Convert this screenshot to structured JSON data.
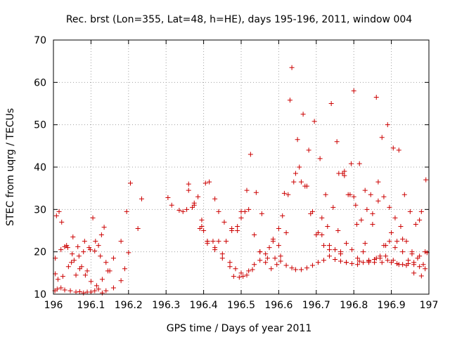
{
  "chart_data": {
    "type": "scatter",
    "title": "Rec. brst (Lon=355, Lat=48, h=HE), days 195-196, 2011, window 004",
    "xlabel": "GPS time / Days of year 2011",
    "ylabel": "STEC from uqrg / TECUs",
    "xlim": [
      196,
      197
    ],
    "ylim": [
      10,
      70
    ],
    "xticks": [
      196,
      196.1,
      196.2,
      196.3,
      196.4,
      196.5,
      196.6,
      196.7,
      196.8,
      196.9,
      197
    ],
    "xtick_labels": [
      "196",
      "196.1",
      "196.2",
      "196.3",
      "196.4",
      "196.5",
      "196.6",
      "196.7",
      "196.8",
      "196.9",
      "197"
    ],
    "yticks": [
      10,
      20,
      30,
      40,
      50,
      60,
      70
    ],
    "ytick_labels": [
      "10",
      "20",
      "30",
      "40",
      "50",
      "60",
      "70"
    ],
    "grid": true,
    "marker": "plus",
    "color": "#cc0000",
    "series": [
      {
        "x": [
          196.004,
          196.01,
          196.02,
          196.03,
          196.045,
          196.06,
          196.07,
          196.08,
          196.09,
          196.1,
          196.11,
          196.12,
          196.13,
          196.14,
          196.16,
          196.18,
          196.19,
          196.2,
          196.005,
          196.012,
          196.025,
          196.04,
          196.055,
          196.07,
          196.085,
          196.1,
          196.115,
          196.13,
          196.145,
          196.16,
          196.18,
          196.195,
          196.005,
          196.02,
          196.035,
          196.05,
          196.065,
          196.08,
          196.095,
          196.11,
          196.125,
          196.14,
          196.008,
          196.022,
          196.038,
          196.052,
          196.068,
          196.083,
          196.098,
          196.112,
          196.128,
          196.015,
          196.03,
          196.048,
          196.06,
          196.075,
          196.09,
          196.105,
          196.12,
          196.135,
          196.15,
          196.205,
          196.225,
          196.235,
          196.305,
          196.315,
          196.335,
          196.345,
          196.355,
          196.36,
          196.37,
          196.375,
          196.385,
          196.395,
          196.4,
          196.405,
          196.415,
          196.43,
          196.44,
          196.455,
          196.475,
          196.49,
          196.5,
          196.515,
          196.525,
          196.54,
          196.555,
          196.36,
          196.375,
          196.395,
          196.41,
          196.425,
          196.44,
          196.46,
          196.475,
          196.49,
          196.5,
          196.51,
          196.52,
          196.535,
          196.55,
          196.565,
          196.58,
          196.595,
          196.605,
          196.62,
          196.635,
          196.65,
          196.665,
          196.68,
          196.695,
          196.71,
          196.725,
          196.74,
          196.755,
          196.77,
          196.785,
          196.8,
          196.815,
          196.83,
          196.845,
          196.86,
          196.875,
          196.89,
          196.905,
          196.92,
          196.935,
          196.95,
          196.965,
          196.98,
          196.992,
          196.39,
          196.41,
          196.43,
          196.45,
          196.47,
          196.48,
          196.495,
          196.505,
          196.515,
          196.53,
          196.55,
          196.565,
          196.575,
          196.585,
          196.6,
          196.61,
          196.625,
          196.64,
          196.655,
          196.67,
          196.685,
          196.7,
          196.715,
          196.73,
          196.745,
          196.76,
          196.775,
          196.79,
          196.805,
          196.82,
          196.835,
          196.85,
          196.865,
          196.88,
          196.895,
          196.91,
          196.925,
          196.94,
          196.955,
          196.97,
          196.985,
          196.41,
          196.43,
          196.45,
          196.47,
          196.485,
          196.5,
          196.52,
          196.535,
          196.55,
          196.57,
          196.585,
          196.6,
          196.615,
          196.63,
          196.645,
          196.66,
          196.675,
          196.69,
          196.705,
          196.72,
          196.735,
          196.75,
          196.765,
          196.78,
          196.795,
          196.81,
          196.825,
          196.84,
          196.855,
          196.87,
          196.885,
          196.9,
          196.915,
          196.93,
          196.945,
          196.96,
          196.975,
          196.99,
          196.59,
          196.605,
          196.62,
          196.635,
          196.645,
          196.66,
          196.675,
          196.69,
          196.705,
          196.72,
          196.735,
          196.75,
          196.765,
          196.78,
          196.795,
          196.81,
          196.825,
          196.84,
          196.855,
          196.87,
          196.885,
          196.9,
          196.915,
          196.93,
          196.945,
          196.96,
          196.975,
          196.99,
          196.715,
          196.735,
          196.758,
          196.775,
          196.793,
          196.808,
          196.83,
          196.85,
          196.865,
          196.88,
          196.895,
          196.91,
          196.93,
          196.955,
          196.975,
          196.995,
          196.765,
          196.78,
          196.8,
          196.815,
          196.84,
          196.86,
          196.875,
          196.89,
          196.905,
          196.92,
          196.94,
          196.96,
          196.98
        ],
        "y": [
          10.8,
          11.2,
          11.5,
          11.0,
          10.8,
          10.5,
          10.6,
          10.3,
          10.5,
          10.5,
          10.8,
          11.2,
          10.3,
          10.8,
          11.5,
          13.2,
          16.0,
          19.8,
          14.8,
          13.5,
          14.2,
          16.5,
          18.0,
          16.0,
          14.5,
          13.0,
          12.0,
          13.5,
          15.5,
          18.5,
          22.5,
          29.5,
          18.5,
          20.5,
          21.5,
          19.5,
          21.2,
          20.0,
          21.0,
          20.2,
          19.0,
          17.5,
          28.5,
          27.0,
          21.0,
          23.5,
          19.0,
          22.5,
          20.5,
          22.5,
          24.0,
          29.5,
          21.2,
          17.5,
          14.5,
          16.5,
          15.5,
          28.0,
          21.5,
          25.8,
          15.5,
          36.2,
          25.5,
          32.5,
          32.8,
          31.0,
          29.8,
          29.5,
          30.0,
          34.5,
          30.5,
          31.0,
          33.0,
          27.5,
          25.0,
          36.2,
          36.5,
          32.5,
          29.5,
          27.0,
          25.5,
          26.0,
          29.5,
          34.5,
          43.0,
          34.0,
          29.0,
          36.0,
          31.5,
          26.0,
          22.5,
          22.5,
          22.5,
          22.5,
          25.0,
          25.0,
          28.0,
          29.5,
          30.0,
          24.0,
          20.0,
          17.5,
          16.0,
          17.0,
          19.0,
          24.5,
          63.5,
          46.5,
          52.5,
          44.0,
          50.8,
          42.0,
          33.5,
          55.0,
          46.0,
          38.5,
          33.5,
          58.0,
          40.8,
          34.5,
          33.5,
          56.5,
          47.0,
          50.0,
          44.5,
          44.0,
          33.5,
          29.5,
          26.5,
          29.5,
          37.0,
          25.5,
          22.5,
          21.0,
          18.5,
          16.5,
          14.2,
          14.0,
          14.2,
          14.5,
          15.8,
          18.0,
          19.5,
          21.0,
          23.0,
          25.5,
          28.5,
          33.5,
          36.5,
          40.0,
          35.5,
          29.0,
          24.0,
          28.0,
          26.0,
          30.5,
          38.5,
          38.0,
          33.5,
          31.0,
          27.5,
          30.0,
          29.0,
          36.5,
          33.0,
          30.5,
          28.0,
          26.0,
          22.5,
          20.0,
          18.5,
          17.0,
          22.0,
          20.5,
          19.5,
          17.5,
          16.0,
          15.0,
          15.5,
          17.0,
          20.0,
          18.5,
          22.5,
          21.5,
          33.8,
          55.8,
          38.5,
          36.5,
          35.5,
          29.5,
          24.5,
          21.5,
          21.5,
          20.5,
          20.0,
          22.0,
          20.5,
          18.5,
          20.0,
          17.5,
          17.5,
          19.0,
          21.5,
          24.5,
          22.5,
          20.0,
          18.0,
          17.5,
          19.0,
          20.0,
          18.5,
          17.8,
          16.8,
          16.2,
          15.8,
          15.8,
          16.2,
          16.8,
          17.5,
          18.0,
          19.0,
          18.2,
          17.8,
          17.5,
          17.2,
          17.0,
          17.5,
          18.0,
          18.2,
          18.5,
          19.0,
          17.5,
          17.2,
          17.0,
          17.2,
          17.0,
          16.5,
          16.0,
          24.0,
          20.5,
          25.0,
          39.0,
          40.8,
          26.5,
          22.0,
          26.5,
          32.0,
          21.5,
          22.5,
          21.0,
          23.0,
          19.5,
          27.5,
          19.8,
          19.5,
          17.5,
          33.0,
          17.8,
          17.8,
          18.5,
          17.5,
          18.0,
          18.0,
          17.0,
          16.8,
          15.0,
          14.3
        ]
      }
    ]
  }
}
